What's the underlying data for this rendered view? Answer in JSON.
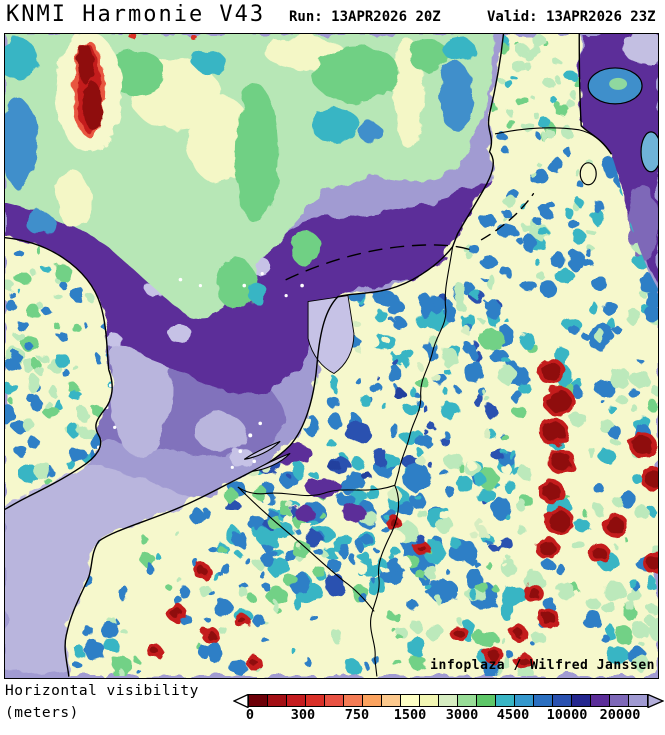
{
  "header": {
    "model_title": "KNMI Harmonie V43",
    "run_label": "Run:",
    "run_time": "13APR2026 20Z",
    "valid_label": "Valid:",
    "valid_time": "13APR2026 23Z"
  },
  "map": {
    "attribution": "infoplaza / Wilfred Janssen"
  },
  "legend": {
    "label_line1": "Horizontal visibility",
    "label_line2": "(meters)",
    "arrow_left_color": "#ffffff",
    "arrow_right_color": "#b3aeda",
    "palette": [
      "#6d0008",
      "#a30f14",
      "#c41c1f",
      "#d93028",
      "#e85243",
      "#f47c55",
      "#fba35f",
      "#fcc98d",
      "#feffc5",
      "#f2f6b3",
      "#d6edc1",
      "#98dd97",
      "#5ec768",
      "#39b5c4",
      "#3598cd",
      "#2b6fc0",
      "#2a51b0",
      "#25278f",
      "#5c2e99",
      "#7e68b8",
      "#a09ad2"
    ],
    "ticks": [
      {
        "label": "0",
        "pct": 0.5
      },
      {
        "label": "300",
        "pct": 13.75
      },
      {
        "label": "750",
        "pct": 27.25
      },
      {
        "label": "1500",
        "pct": 40.5
      },
      {
        "label": "3000",
        "pct": 53.5
      },
      {
        "label": "4500",
        "pct": 66.25
      },
      {
        "label": "10000",
        "pct": 79.75
      },
      {
        "label": "20000",
        "pct": 93
      }
    ]
  },
  "chart_data": {
    "type": "heatmap",
    "title": "Horizontal visibility (meters)",
    "model": "KNMI Harmonie V43",
    "run": "13APR2026 20Z",
    "valid": "13APR2026 23Z",
    "units": "meters",
    "scale_ticks": [
      0,
      300,
      750,
      1500,
      3000,
      4500,
      10000,
      20000
    ],
    "scale_note": "dark red = 0 m (fog), orange/yellow = poor-moderate, green/blue = good, purple = >20000 m",
    "region": "North Sea, Netherlands, Belgium, Germany, SE England, Denmark, N France",
    "features": [
      "large purple (>20000 m) area over central North Sea",
      "green/blue band (3000-10000 m) across northern North Sea",
      "dark red fog patch over sea NW (near top-left)",
      "blue mottled 4500-10000 m over Netherlands/Belgium/W Germany",
      "chains of dark red fog spots over central/eastern Germany",
      "pale yellow (1500-3000 m) over land UK, France and Germany",
      "small red fog spots over N France"
    ]
  }
}
